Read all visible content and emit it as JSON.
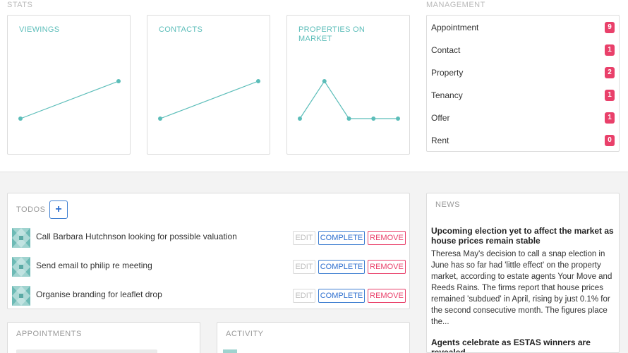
{
  "stats": {
    "section_label": "STATS",
    "cards": [
      {
        "title": "VIEWINGS"
      },
      {
        "title": "CONTACTS"
      },
      {
        "title": "PROPERTIES ON MARKET"
      }
    ]
  },
  "chart_data": [
    {
      "type": "line",
      "title": "VIEWINGS",
      "x": [
        0,
        1
      ],
      "y": [
        0,
        1
      ]
    },
    {
      "type": "line",
      "title": "CONTACTS",
      "x": [
        0,
        1
      ],
      "y": [
        0,
        1
      ]
    },
    {
      "type": "line",
      "title": "PROPERTIES ON MARKET",
      "x": [
        0,
        1,
        2,
        3,
        4
      ],
      "y": [
        0,
        1,
        0,
        0,
        0
      ]
    }
  ],
  "management": {
    "section_label": "MANAGEMENT",
    "items": [
      {
        "label": "Appointment",
        "count": "9"
      },
      {
        "label": "Contact",
        "count": "1"
      },
      {
        "label": "Property",
        "count": "2"
      },
      {
        "label": "Tenancy",
        "count": "1"
      },
      {
        "label": "Offer",
        "count": "1"
      },
      {
        "label": "Rent",
        "count": "0"
      }
    ]
  },
  "todos": {
    "title": "TODOS",
    "add_label": "+",
    "edit_label": "EDIT",
    "complete_label": "COMPLETE",
    "remove_label": "REMOVE",
    "items": [
      {
        "text": "Call Barbara Hutchnson looking for possible valuation"
      },
      {
        "text": "Send email to philip re meeting"
      },
      {
        "text": "Organise branding for leaflet drop"
      }
    ]
  },
  "news": {
    "title": "NEWS",
    "articles": [
      {
        "headline": "Upcoming election yet to affect the market as house prices remain stable",
        "body": "Theresa May's decision to call a snap election in June has so far had 'little effect' on the property market, according to estate agents Your Move and Reeds Rains. The firms report that house prices remained 'subdued' in April, rising by just 0.1% for the second consecutive month. The figures place the..."
      },
      {
        "headline": "Agents celebrate as ESTAS winners are revealed"
      }
    ]
  },
  "appointments": {
    "title": "APPOINTMENTS"
  },
  "activity": {
    "title": "ACTIVITY"
  },
  "colors": {
    "accent": "#5bbdb9",
    "badge": "#e9406a",
    "primary": "#3f7fd1"
  }
}
